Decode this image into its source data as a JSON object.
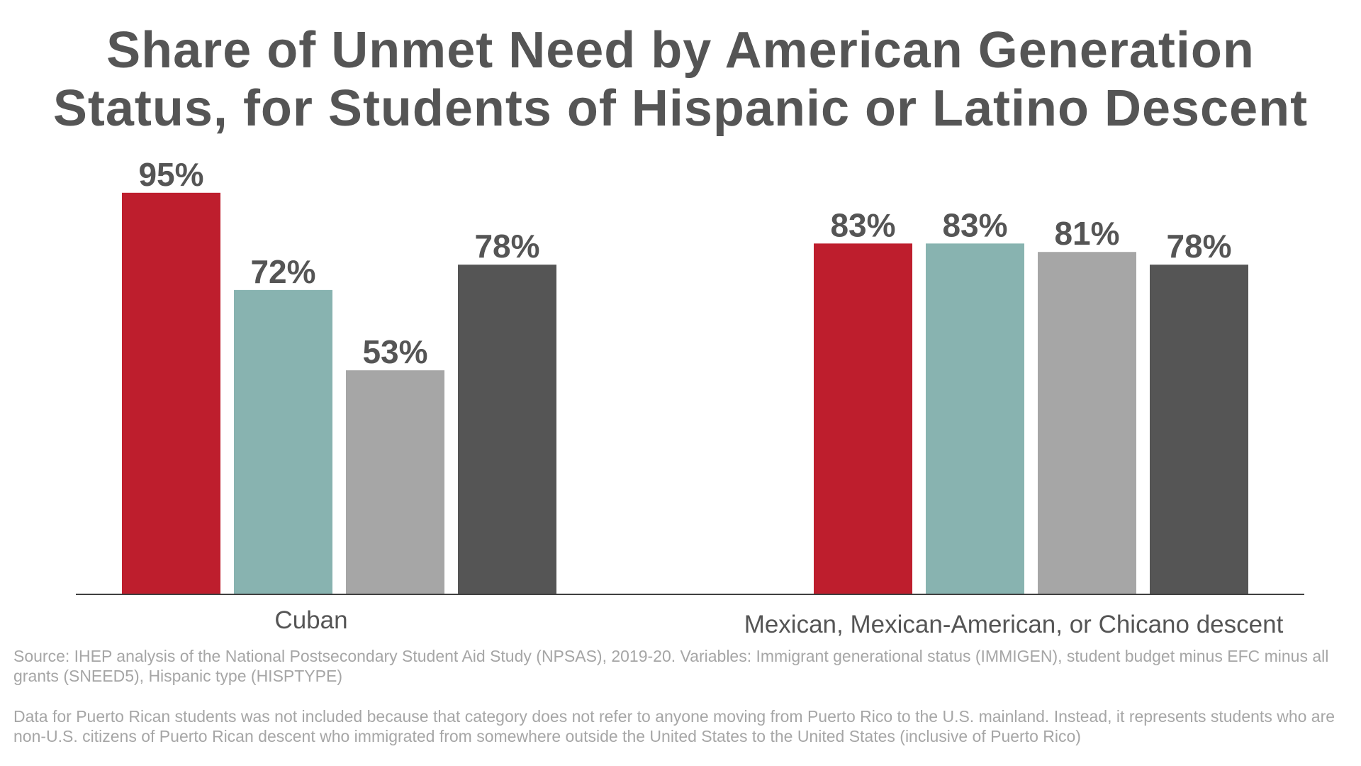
{
  "chart_data": {
    "type": "bar",
    "title": "Share of Unmet Need by American Generation Status, for Students of Hispanic or Latino Descent",
    "title_lines": [
      "Share of Unmet Need by American Generation",
      "Status, for Students of Hispanic or Latino Descent"
    ],
    "categories": [
      "Cuban",
      "Mexican, Mexican-American, or Chicano descent"
    ],
    "series": [
      {
        "color": "#be1e2d",
        "values": [
          95,
          83
        ],
        "labels": [
          "95%",
          "83%"
        ]
      },
      {
        "color": "#88b3b0",
        "values": [
          72,
          83
        ],
        "labels": [
          "72%",
          "83%"
        ]
      },
      {
        "color": "#a6a6a6",
        "values": [
          53,
          81
        ],
        "labels": [
          "53%",
          "81%"
        ]
      },
      {
        "color": "#555555",
        "values": [
          78,
          78
        ],
        "labels": [
          "78%",
          "78%"
        ]
      }
    ],
    "ylim": [
      0,
      100
    ],
    "grid": false,
    "xlabel": "",
    "ylabel": ""
  },
  "source": "Source: IHEP analysis of the National Postsecondary Student Aid Study (NPSAS), 2019-20. Variables: Immigrant generational status (IMMIGEN), student budget minus EFC minus all grants (SNEED5), Hispanic type (HISPTYPE)",
  "note": "Data for Puerto Rican students was not included because that category does not refer to anyone moving from Puerto Rico to the U.S. mainland. Instead, it represents students who are non-U.S. citizens of Puerto Rican descent who immigrated from somewhere outside the United States to the United States (inclusive of Puerto Rico)",
  "colors": {
    "text": "#555555",
    "footnote": "#a6a6a6",
    "axis": "#404040"
  }
}
